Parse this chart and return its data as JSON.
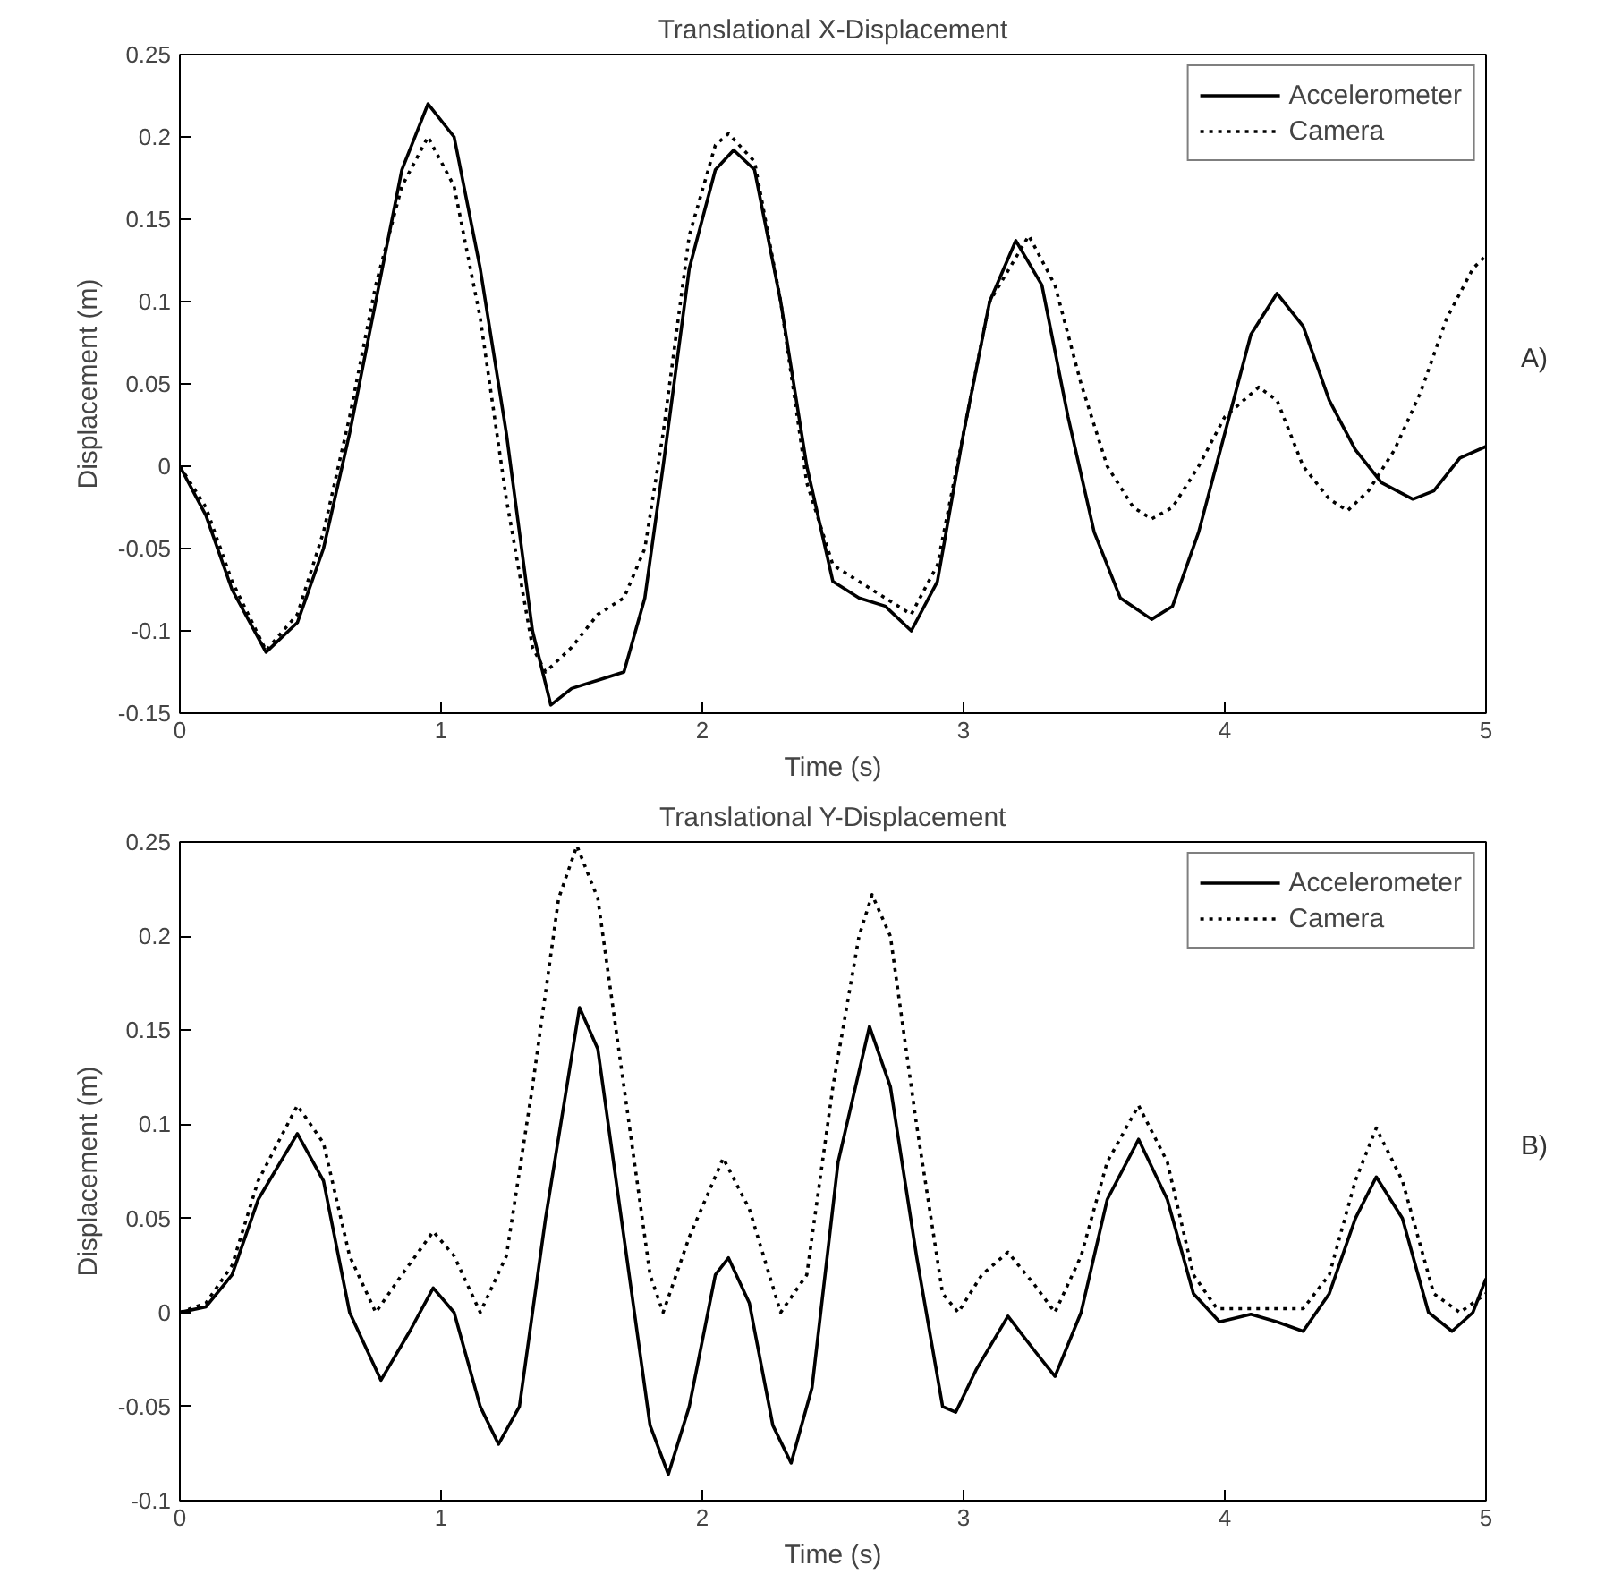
{
  "chart_data": [
    {
      "type": "line",
      "title": "Translational X-Displacement",
      "xlabel": "Time (s)",
      "ylabel": "Displacement (m)",
      "annotations": [
        "A)"
      ],
      "xlim": [
        0,
        5
      ],
      "ylim": [
        -0.15,
        0.25
      ],
      "xticks": [
        0,
        1,
        2,
        3,
        4,
        5
      ],
      "yticks": [
        -0.15,
        -0.1,
        -0.05,
        0,
        0.05,
        0.1,
        0.15,
        0.2,
        0.25
      ],
      "grid": false,
      "legend": "top right",
      "series": [
        {
          "name": "Accelerometer",
          "color": "#000000",
          "line_style": "solid",
          "x": [
            0,
            0.1,
            0.2,
            0.33,
            0.45,
            0.55,
            0.65,
            0.75,
            0.85,
            0.95,
            1.05,
            1.15,
            1.25,
            1.35,
            1.42,
            1.5,
            1.6,
            1.7,
            1.78,
            1.85,
            1.95,
            2.05,
            2.12,
            2.2,
            2.3,
            2.4,
            2.5,
            2.6,
            2.7,
            2.8,
            2.9,
            3.0,
            3.1,
            3.2,
            3.3,
            3.4,
            3.5,
            3.6,
            3.72,
            3.8,
            3.9,
            4.0,
            4.1,
            4.2,
            4.3,
            4.4,
            4.5,
            4.6,
            4.72,
            4.8,
            4.9,
            5.0
          ],
          "values": [
            0,
            -0.03,
            -0.075,
            -0.113,
            -0.095,
            -0.05,
            0.02,
            0.1,
            0.18,
            0.22,
            0.2,
            0.12,
            0.02,
            -0.1,
            -0.145,
            -0.135,
            -0.13,
            -0.125,
            -0.08,
            0.0,
            0.12,
            0.18,
            0.192,
            0.18,
            0.1,
            0.0,
            -0.07,
            -0.08,
            -0.085,
            -0.1,
            -0.07,
            0.02,
            0.1,
            0.137,
            0.11,
            0.03,
            -0.04,
            -0.08,
            -0.093,
            -0.085,
            -0.04,
            0.02,
            0.08,
            0.105,
            0.085,
            0.04,
            0.01,
            -0.01,
            -0.02,
            -0.015,
            0.005,
            0.012
          ]
        },
        {
          "name": "Camera",
          "color": "#000000",
          "line_style": "dotted",
          "x": [
            0,
            0.1,
            0.2,
            0.33,
            0.45,
            0.55,
            0.65,
            0.75,
            0.85,
            0.95,
            1.05,
            1.15,
            1.25,
            1.35,
            1.4,
            1.5,
            1.6,
            1.7,
            1.78,
            1.85,
            1.95,
            2.05,
            2.1,
            2.2,
            2.3,
            2.4,
            2.5,
            2.6,
            2.7,
            2.8,
            2.9,
            3.0,
            3.1,
            3.25,
            3.35,
            3.45,
            3.55,
            3.65,
            3.72,
            3.8,
            3.9,
            4.0,
            4.13,
            4.2,
            4.3,
            4.4,
            4.47,
            4.55,
            4.65,
            4.75,
            4.85,
            4.95,
            5.0
          ],
          "values": [
            0,
            -0.025,
            -0.07,
            -0.112,
            -0.09,
            -0.04,
            0.03,
            0.11,
            0.17,
            0.2,
            0.17,
            0.09,
            -0.02,
            -0.11,
            -0.125,
            -0.11,
            -0.09,
            -0.08,
            -0.05,
            0.02,
            0.14,
            0.195,
            0.202,
            0.185,
            0.1,
            -0.01,
            -0.06,
            -0.07,
            -0.08,
            -0.09,
            -0.06,
            0.02,
            0.1,
            0.14,
            0.11,
            0.05,
            0.0,
            -0.025,
            -0.032,
            -0.025,
            0.0,
            0.03,
            0.048,
            0.04,
            0.0,
            -0.02,
            -0.027,
            -0.015,
            0.01,
            0.045,
            0.09,
            0.12,
            0.128
          ]
        }
      ]
    },
    {
      "type": "line",
      "title": "Translational Y-Displacement",
      "xlabel": "Time (s)",
      "ylabel": "Displacement (m)",
      "annotations": [
        "B)"
      ],
      "xlim": [
        0,
        5
      ],
      "ylim": [
        -0.1,
        0.25
      ],
      "xticks": [
        0,
        1,
        2,
        3,
        4,
        5
      ],
      "yticks": [
        -0.1,
        -0.05,
        0,
        0.05,
        0.1,
        0.15,
        0.2,
        0.25
      ],
      "grid": false,
      "legend": "top right",
      "series": [
        {
          "name": "Accelerometer",
          "color": "#000000",
          "line_style": "solid",
          "x": [
            0,
            0.1,
            0.2,
            0.3,
            0.45,
            0.55,
            0.65,
            0.77,
            0.88,
            0.97,
            1.05,
            1.15,
            1.22,
            1.3,
            1.4,
            1.53,
            1.6,
            1.7,
            1.8,
            1.87,
            1.95,
            2.05,
            2.1,
            2.18,
            2.27,
            2.34,
            2.42,
            2.52,
            2.64,
            2.72,
            2.82,
            2.92,
            2.97,
            3.05,
            3.17,
            3.27,
            3.35,
            3.45,
            3.55,
            3.67,
            3.78,
            3.88,
            3.98,
            4.1,
            4.2,
            4.3,
            4.4,
            4.5,
            4.58,
            4.68,
            4.78,
            4.87,
            4.95,
            5.0
          ],
          "values": [
            0,
            0.003,
            0.02,
            0.06,
            0.095,
            0.07,
            0.0,
            -0.036,
            -0.01,
            0.013,
            0.0,
            -0.05,
            -0.07,
            -0.05,
            0.05,
            0.162,
            0.14,
            0.04,
            -0.06,
            -0.086,
            -0.05,
            0.02,
            0.029,
            0.005,
            -0.06,
            -0.08,
            -0.04,
            0.08,
            0.152,
            0.12,
            0.03,
            -0.05,
            -0.053,
            -0.03,
            -0.002,
            -0.02,
            -0.034,
            0.0,
            0.06,
            0.092,
            0.06,
            0.01,
            -0.005,
            -0.001,
            -0.005,
            -0.01,
            0.01,
            0.05,
            0.072,
            0.05,
            0.0,
            -0.01,
            0.0,
            0.018
          ]
        },
        {
          "name": "Camera",
          "color": "#000000",
          "line_style": "dotted",
          "x": [
            0,
            0.1,
            0.2,
            0.3,
            0.45,
            0.55,
            0.65,
            0.75,
            0.85,
            0.97,
            1.05,
            1.15,
            1.25,
            1.35,
            1.45,
            1.52,
            1.6,
            1.7,
            1.8,
            1.85,
            1.95,
            2.08,
            2.18,
            2.3,
            2.4,
            2.5,
            2.6,
            2.65,
            2.72,
            2.82,
            2.92,
            2.98,
            3.07,
            3.17,
            3.27,
            3.35,
            3.45,
            3.55,
            3.67,
            3.78,
            3.88,
            3.97,
            4.1,
            4.3,
            4.4,
            4.5,
            4.58,
            4.68,
            4.8,
            4.9,
            5.0
          ],
          "values": [
            0,
            0.005,
            0.025,
            0.07,
            0.11,
            0.09,
            0.03,
            0.0,
            0.02,
            0.043,
            0.03,
            0.0,
            0.03,
            0.12,
            0.22,
            0.248,
            0.22,
            0.12,
            0.02,
            0.0,
            0.04,
            0.082,
            0.055,
            0.0,
            0.02,
            0.12,
            0.2,
            0.222,
            0.2,
            0.1,
            0.01,
            0.0,
            0.02,
            0.032,
            0.015,
            0.0,
            0.03,
            0.08,
            0.11,
            0.08,
            0.02,
            0.002,
            0.002,
            0.002,
            0.02,
            0.07,
            0.098,
            0.07,
            0.01,
            0.0,
            0.01
          ]
        }
      ]
    }
  ]
}
